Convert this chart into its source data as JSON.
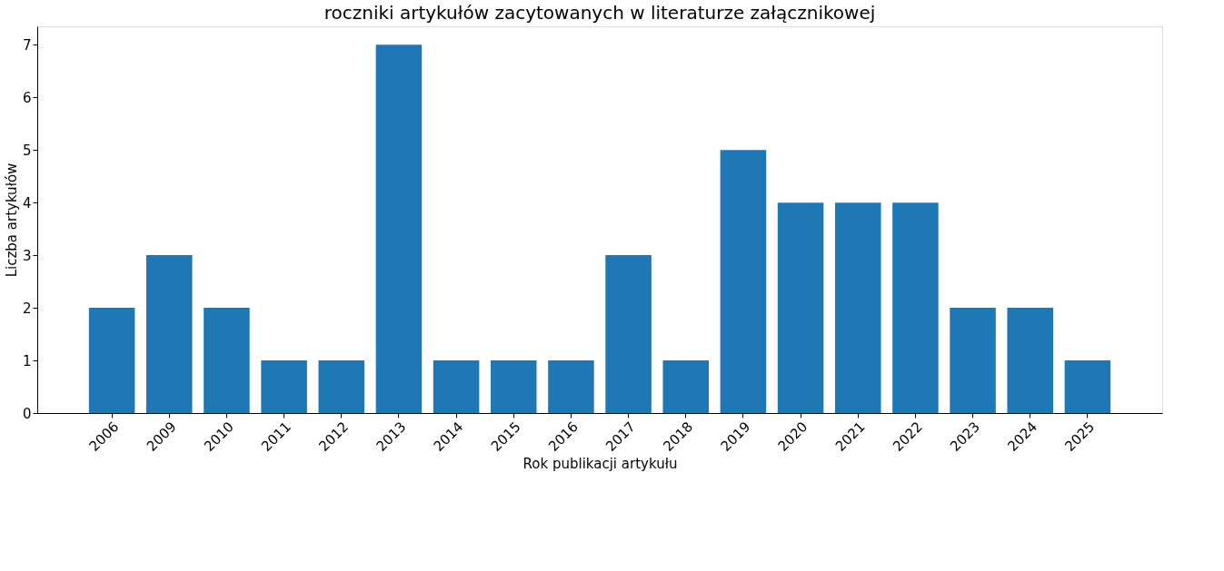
{
  "chart_data": {
    "type": "bar",
    "title": "roczniki artykułów zacytowanych w literaturze załącznikowej",
    "xlabel": "Rok publikacji artykułu",
    "ylabel": "Liczba artykułów",
    "categories": [
      "2006",
      "2009",
      "2010",
      "2011",
      "2012",
      "2013",
      "2014",
      "2015",
      "2016",
      "2017",
      "2018",
      "2019",
      "2020",
      "2021",
      "2022",
      "2023",
      "2024",
      "2025"
    ],
    "values": [
      2,
      3,
      2,
      1,
      1,
      7,
      1,
      1,
      1,
      3,
      1,
      5,
      4,
      4,
      4,
      2,
      2,
      1
    ],
    "color": "#1f77b4",
    "ylim": [
      0,
      7.35
    ],
    "yticks": [
      0,
      1,
      2,
      3,
      4,
      5,
      6,
      7
    ],
    "grid": false
  }
}
